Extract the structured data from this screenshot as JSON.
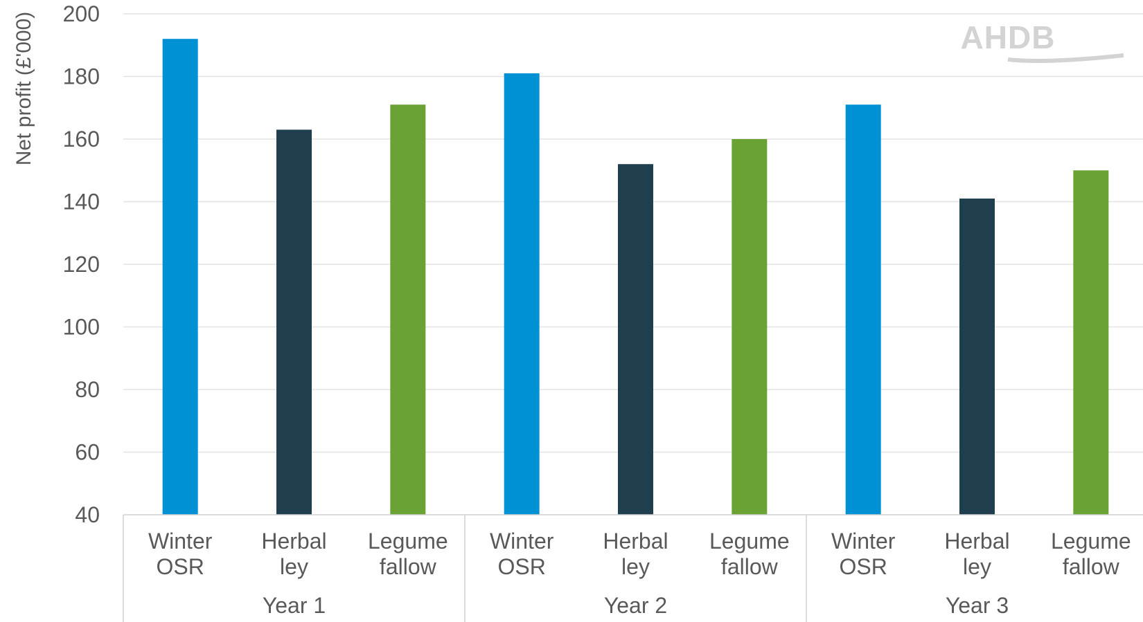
{
  "chart_data": {
    "type": "bar",
    "ylabel": "Net profit (£'000)",
    "ylim": [
      40,
      200
    ],
    "yticks": [
      40,
      60,
      80,
      100,
      120,
      140,
      160,
      180,
      200
    ],
    "grid": true,
    "groups": [
      {
        "name": "Year 1",
        "bars": [
          {
            "category": [
              "Winter",
              "OSR"
            ],
            "value": 192,
            "color": "#0090D4"
          },
          {
            "category": [
              "Herbal",
              "ley"
            ],
            "value": 163,
            "color": "#1F3F4F"
          },
          {
            "category": [
              "Legume",
              "fallow"
            ],
            "value": 171,
            "color": "#6BA234"
          }
        ]
      },
      {
        "name": "Year 2",
        "bars": [
          {
            "category": [
              "Winter",
              "OSR"
            ],
            "value": 181,
            "color": "#0090D4"
          },
          {
            "category": [
              "Herbal",
              "ley"
            ],
            "value": 152,
            "color": "#1F3F4F"
          },
          {
            "category": [
              "Legume",
              "fallow"
            ],
            "value": 160,
            "color": "#6BA234"
          }
        ]
      },
      {
        "name": "Year 3",
        "bars": [
          {
            "category": [
              "Winter",
              "OSR"
            ],
            "value": 171,
            "color": "#0090D4"
          },
          {
            "category": [
              "Herbal",
              "ley"
            ],
            "value": 141,
            "color": "#1F3F4F"
          },
          {
            "category": [
              "Legume",
              "fallow"
            ],
            "value": 150,
            "color": "#6BA234"
          }
        ]
      }
    ]
  },
  "logo": {
    "text": "AHDB"
  }
}
